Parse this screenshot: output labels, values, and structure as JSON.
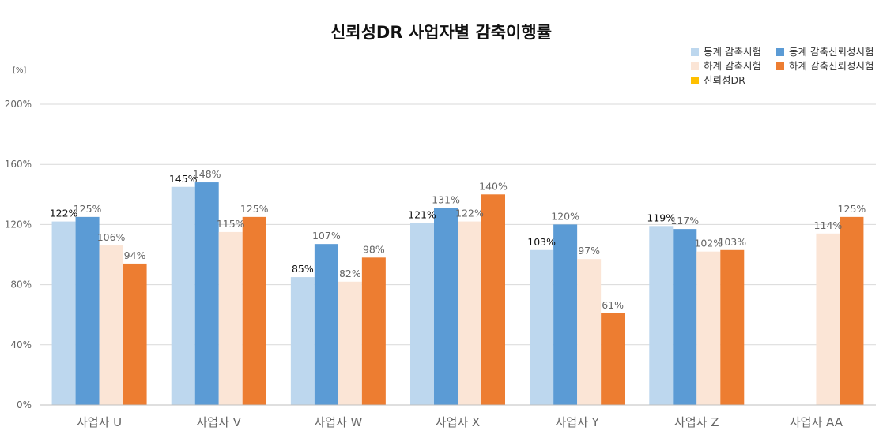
{
  "chart_data": {
    "type": "bar",
    "title": "신뢰성DR 사업자별 감축이행률",
    "unit_label": "[%]",
    "ylim": [
      0,
      200
    ],
    "y_ticks": [
      "0%",
      "40%",
      "80%",
      "120%",
      "160%",
      "200%"
    ],
    "y_tick_values": [
      0,
      40,
      80,
      120,
      160,
      200
    ],
    "grid": true,
    "legend_position": "top-right",
    "categories": [
      "사업자 U",
      "사업자 V",
      "사업자 W",
      "사업자 X",
      "사업자 Y",
      "사업자 Z",
      "사업자 AA"
    ],
    "series": [
      {
        "name": "동계 감축시험",
        "color": "#bdd7ee",
        "values": [
          122,
          145,
          85,
          121,
          103,
          119,
          null
        ],
        "labels": [
          "122%",
          "145%",
          "85%",
          "121%",
          "103%",
          "119%",
          ""
        ]
      },
      {
        "name": "동계 감축신뢰성시험",
        "color": "#5b9bd5",
        "values": [
          125,
          148,
          107,
          131,
          120,
          117,
          null
        ],
        "labels": [
          "125%",
          "148%",
          "107%",
          "131%",
          "120%",
          "117%",
          ""
        ]
      },
      {
        "name": "하계 감축시험",
        "color": "#fbe5d6",
        "values": [
          106,
          115,
          82,
          122,
          97,
          102,
          114
        ],
        "labels": [
          "106%",
          "115%",
          "82%",
          "122%",
          "97%",
          "102%",
          "114%"
        ]
      },
      {
        "name": "하계 감축신뢰성시험",
        "color": "#ed7d31",
        "values": [
          94,
          125,
          98,
          140,
          61,
          103,
          125
        ],
        "labels": [
          "94%",
          "125%",
          "98%",
          "140%",
          "61%",
          "103%",
          "125%"
        ]
      },
      {
        "name": "신뢰성DR",
        "color": "#ffc000",
        "values": [
          null,
          null,
          null,
          null,
          null,
          null,
          null
        ],
        "labels": [
          "",
          "",
          "",
          "",
          "",
          "",
          ""
        ]
      }
    ],
    "label_colors": [
      "#111111",
      "#666666",
      "#666666",
      "#666666",
      "#666666"
    ],
    "legend_order": [
      0,
      1,
      2,
      3,
      4
    ]
  }
}
